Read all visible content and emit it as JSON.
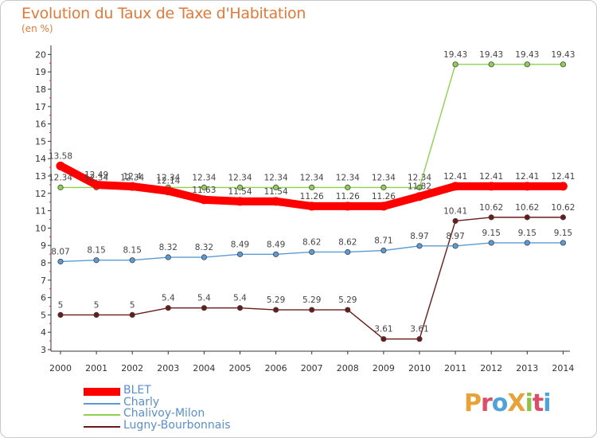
{
  "title": "Evolution du Taux de Taxe d'Habitation",
  "subtitle": "(en %)",
  "logo": "ProXiti",
  "chart_data": {
    "type": "line",
    "x": [
      "2000",
      "2001",
      "2002",
      "2003",
      "2004",
      "2005",
      "2006",
      "2007",
      "2008",
      "2009",
      "2010",
      "2011",
      "2012",
      "2013",
      "2014"
    ],
    "yticks": [
      "3",
      "4",
      "5",
      "6",
      "7",
      "8",
      "9",
      "10",
      "11",
      "12",
      "13",
      "14",
      "15",
      "16",
      "17",
      "18",
      "19",
      "20"
    ],
    "ylim": [
      3,
      20
    ],
    "grid": false,
    "legend_position": "bottom-left",
    "series": [
      {
        "name": "BLET",
        "color": "#ff0000",
        "values": [
          13.58,
          12.49,
          12.4,
          12.14,
          11.63,
          11.54,
          11.54,
          11.26,
          11.26,
          11.26,
          11.82,
          12.41,
          12.41,
          12.41,
          12.41
        ],
        "labels": [
          "13.58",
          "12.49",
          "12.4",
          "12.14",
          "11.63",
          "11.54",
          "11.54",
          "11.26",
          "11.26",
          "11.26",
          "11.82",
          "12.41",
          "12.41",
          "12.41",
          "12.41"
        ]
      },
      {
        "name": "Charly",
        "color": "#5b9bd5",
        "values": [
          8.07,
          8.15,
          8.15,
          8.32,
          8.32,
          8.49,
          8.49,
          8.62,
          8.62,
          8.71,
          8.97,
          8.97,
          9.15,
          9.15,
          9.15
        ],
        "labels": [
          "8.07",
          "8.15",
          "8.15",
          "8.32",
          "8.32",
          "8.49",
          "8.49",
          "8.62",
          "8.62",
          "8.71",
          "8.97",
          "8.97",
          "9.15",
          "9.15",
          "9.15"
        ]
      },
      {
        "name": "Chalivoy-Milon",
        "color": "#8fd14f",
        "values": [
          12.34,
          12.34,
          12.34,
          12.34,
          12.34,
          12.34,
          12.34,
          12.34,
          12.34,
          12.34,
          12.34,
          19.43,
          19.43,
          19.43,
          19.43
        ],
        "labels": [
          "12.34",
          "12.34",
          "12.34",
          "12.34",
          "12.34",
          "12.34",
          "12.34",
          "12.34",
          "12.34",
          "12.34",
          "12.34",
          "19.43",
          "19.43",
          "19.43",
          "19.43"
        ]
      },
      {
        "name": "Lugny-Bourbonnais",
        "color": "#6b1a1a",
        "values": [
          5,
          5,
          5,
          5.4,
          5.4,
          5.4,
          5.29,
          5.29,
          5.29,
          3.61,
          3.61,
          10.41,
          10.62,
          10.62,
          10.62
        ],
        "labels": [
          "5",
          "5",
          "5",
          "5.4",
          "5.4",
          "5.4",
          "5.29",
          "5.29",
          "5.29",
          "3.61",
          "3.61",
          "10.41",
          "10.62",
          "10.62",
          "10.62"
        ]
      }
    ]
  }
}
